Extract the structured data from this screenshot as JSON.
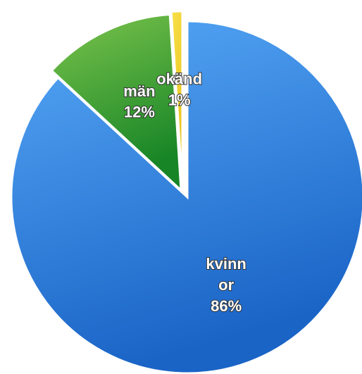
{
  "chart_data": {
    "type": "pie",
    "categories": [
      "kvinn\nor",
      "män",
      "okänd"
    ],
    "values": [
      86,
      12,
      1
    ],
    "value_labels": [
      "86%",
      "12%",
      "1%"
    ],
    "colors": [
      [
        "#56a8f7",
        "#1a64c6"
      ],
      [
        "#7cc44c",
        "#178526"
      ],
      [
        "#f8e04a",
        "#e8c21a"
      ]
    ]
  }
}
